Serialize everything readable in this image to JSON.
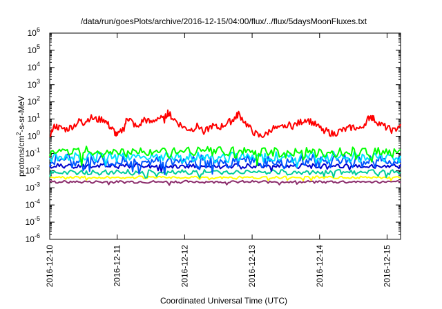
{
  "chart_data": {
    "type": "line",
    "title": "/data/run/goesPlots/archive/2016-12-15/04:00/flux/../flux/5daysMoonFluxes.txt",
    "xlabel": "Coordinated Universal Time (UTC)",
    "ylabel": "protons/cm²-s-sr-MeV",
    "yscale": "log",
    "ylim": [
      1e-06,
      1000000.0
    ],
    "xlim": [
      0,
      5.2
    ],
    "x_ticks": [
      {
        "x": 0,
        "label": "2016-12-10"
      },
      {
        "x": 1,
        "label": "2016-12-11"
      },
      {
        "x": 2,
        "label": "2016-12-12"
      },
      {
        "x": 3,
        "label": "2016-12-13"
      },
      {
        "x": 4,
        "label": "2016-12-14"
      },
      {
        "x": 5,
        "label": "2016-12-15"
      }
    ],
    "y_ticks": [
      {
        "exp": -6,
        "base": "10",
        "sup": "-6"
      },
      {
        "exp": -5,
        "base": "10",
        "sup": "-5"
      },
      {
        "exp": -4,
        "base": "10",
        "sup": "-4"
      },
      {
        "exp": -3,
        "base": "10",
        "sup": "-3"
      },
      {
        "exp": -2,
        "base": "10",
        "sup": "-2"
      },
      {
        "exp": -1,
        "base": "10",
        "sup": "-1"
      },
      {
        "exp": 0,
        "base": "10",
        "sup": "0"
      },
      {
        "exp": 1,
        "base": "10",
        "sup": "1"
      },
      {
        "exp": 2,
        "base": "10",
        "sup": "2"
      },
      {
        "exp": 3,
        "base": "10",
        "sup": "3"
      },
      {
        "exp": 4,
        "base": "10",
        "sup": "4"
      },
      {
        "exp": 5,
        "base": "10",
        "sup": "5"
      },
      {
        "exp": 6,
        "base": "10",
        "sup": "6"
      }
    ],
    "grid": false,
    "legend": "none",
    "series": [
      {
        "color": "#ff0000",
        "amplitude_dex": 0.2,
        "x": [
          0,
          0.08,
          0.15,
          0.25,
          0.35,
          0.45,
          0.5,
          0.6,
          0.7,
          0.8,
          0.88,
          0.95,
          1.0,
          1.1,
          1.15,
          1.2,
          1.3,
          1.4,
          1.5,
          1.6,
          1.7,
          1.75,
          1.8,
          1.9,
          2.0,
          2.1,
          2.2,
          2.3,
          2.4,
          2.5,
          2.6,
          2.7,
          2.75,
          2.8,
          2.9,
          3.0,
          3.1,
          3.2,
          3.3,
          3.4,
          3.5,
          3.6,
          3.7,
          3.8,
          3.9,
          4.0,
          4.1,
          4.2,
          4.3,
          4.4,
          4.5,
          4.6,
          4.7,
          4.75,
          4.8,
          4.9,
          5.0,
          5.1,
          5.2
        ],
        "y": [
          1.2,
          4,
          3,
          2.5,
          4,
          8,
          6,
          12,
          9,
          10,
          4,
          2,
          1,
          3,
          12,
          8,
          3,
          10,
          6,
          12,
          9,
          25,
          14,
          6,
          3,
          2.5,
          4,
          1.8,
          4,
          3,
          5,
          8,
          12,
          20,
          6,
          2,
          1,
          1.2,
          3,
          2.5,
          5,
          4,
          6,
          10,
          6,
          3,
          2,
          1.3,
          2,
          2.5,
          3.5,
          2.5,
          8,
          15,
          10,
          5,
          3,
          2,
          5
        ]
      },
      {
        "color": "#00ff00",
        "base": 0.12,
        "amplitude_dex": 0.25
      },
      {
        "color": "#00e0ff",
        "base": 0.06,
        "amplitude_dex": 0.25
      },
      {
        "color": "#0055ff",
        "base": 0.035,
        "amplitude_dex": 0.3
      },
      {
        "color": "#0000cc",
        "base": 0.018,
        "amplitude_dex": 0.12
      },
      {
        "color": "#00cc99",
        "base": 0.008,
        "amplitude_dex": 0.12
      },
      {
        "color": "#ffff00",
        "base": 0.004,
        "amplitude_dex": 0.06
      },
      {
        "color": "#8b2c6b",
        "base": 0.0022,
        "amplitude_dex": 0.06
      }
    ]
  }
}
